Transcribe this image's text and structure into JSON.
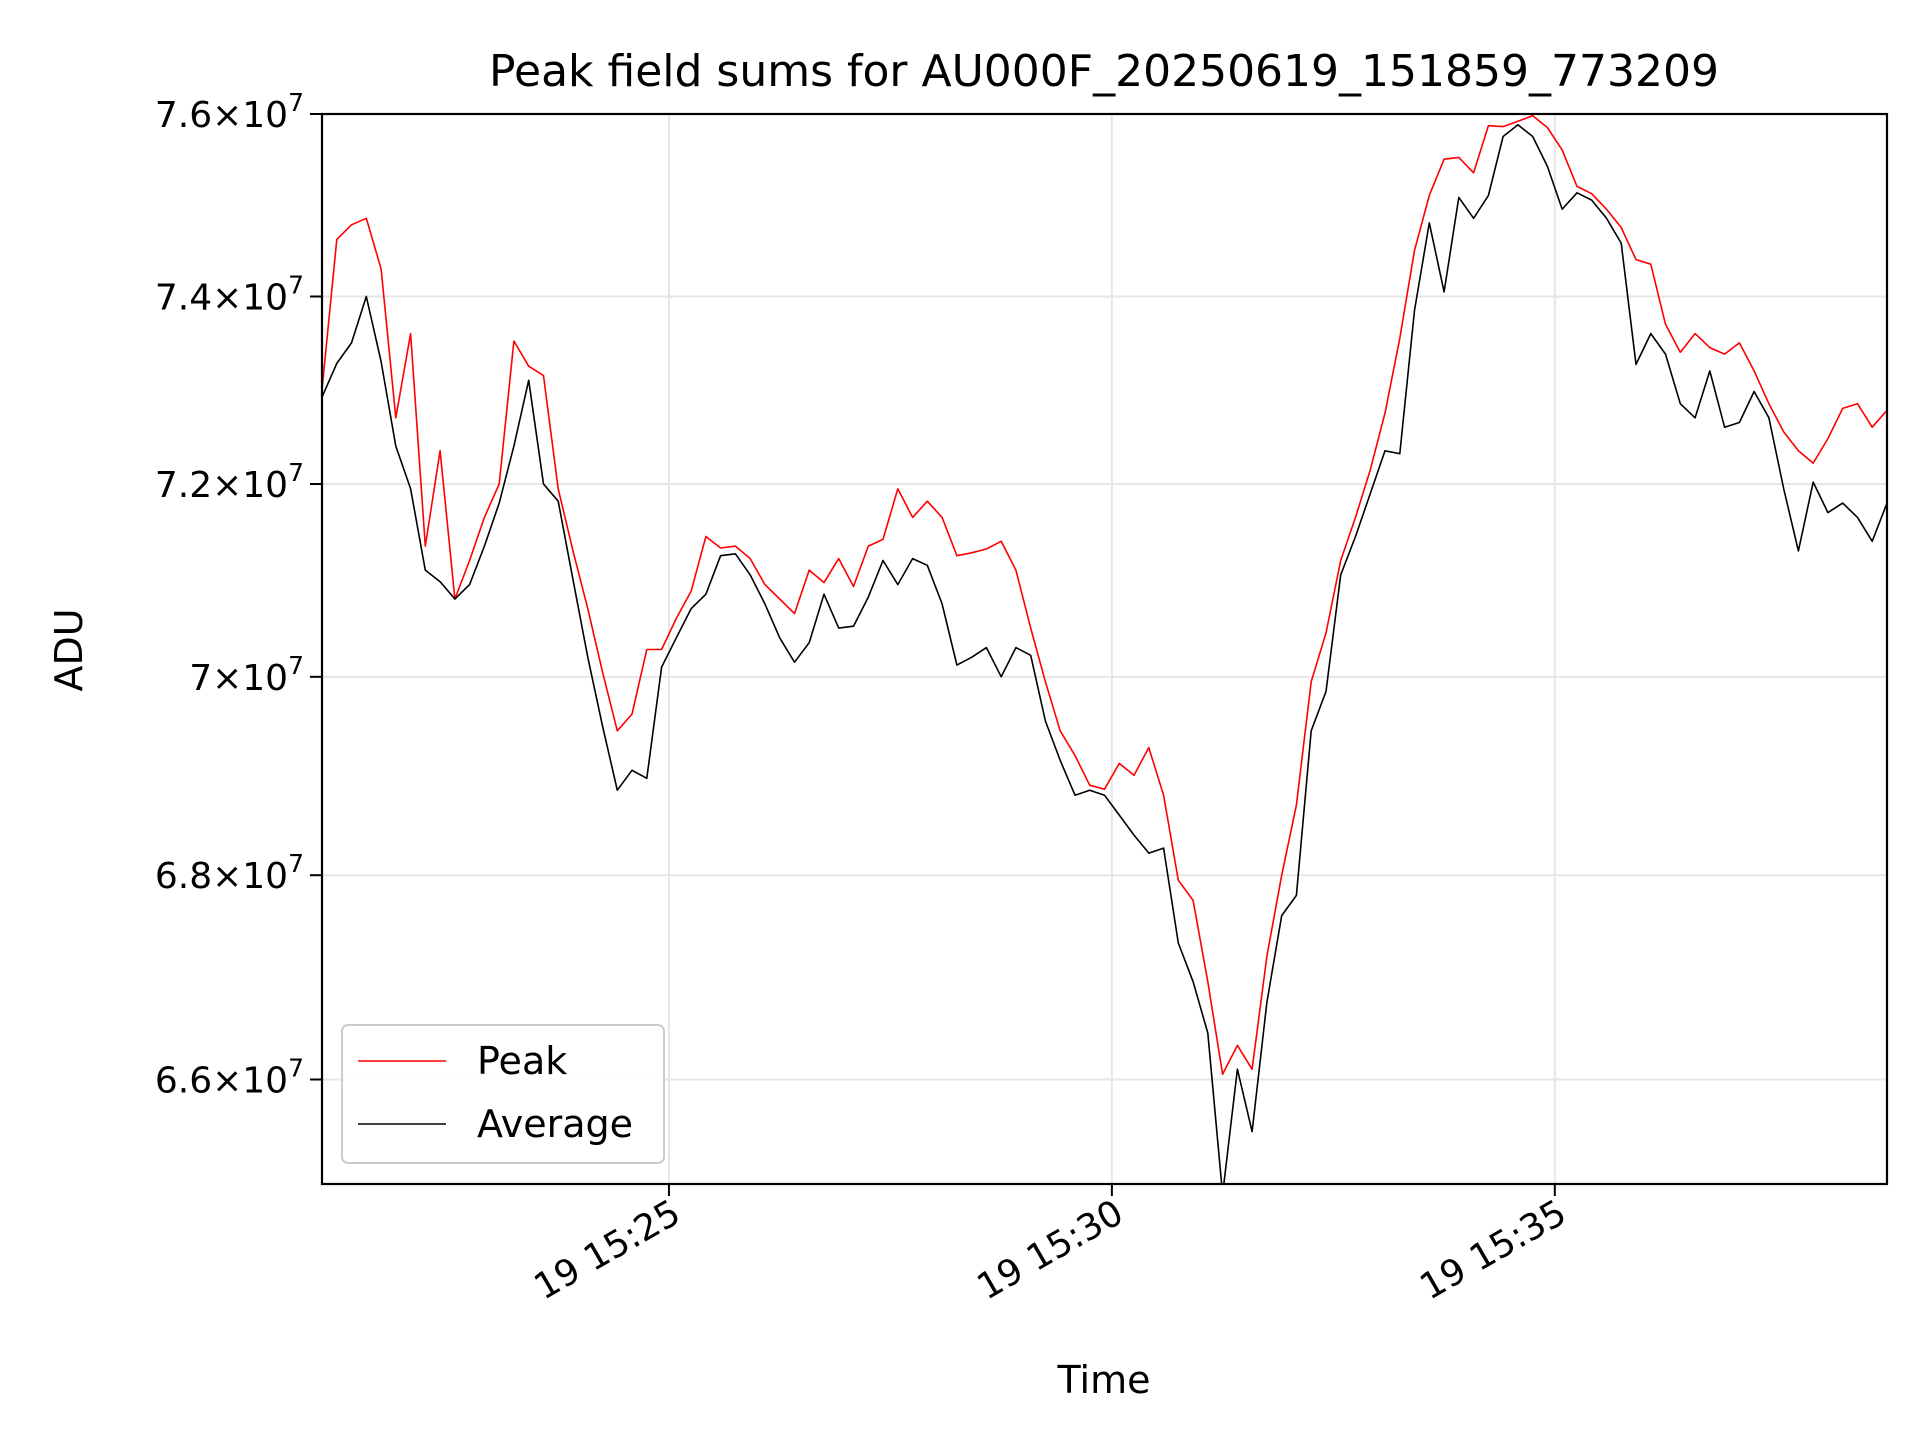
{
  "chart_data": {
    "type": "line",
    "title": "Peak field sums for AU000F_20250619_151859_773209",
    "xlabel": "Time",
    "ylabel": "ADU",
    "x_axis_type": "datetime",
    "y_scale": "log",
    "x_start": "2025-06-19 15:21:05",
    "x_end": "2025-06-19 15:38:45",
    "ylim": [
      65000000,
      76000000
    ],
    "grid": true,
    "legend_position": "lower-left",
    "x_ticks": [
      {
        "time": "2025-06-19 15:25:00",
        "label": "19 15:25"
      },
      {
        "time": "2025-06-19 15:30:00",
        "label": "19 15:30"
      },
      {
        "time": "2025-06-19 15:35:00",
        "label": "19 15:35"
      }
    ],
    "y_ticks": [
      {
        "value": 66000000,
        "mantissa": "6.6",
        "exp": "7"
      },
      {
        "value": 68000000,
        "mantissa": "6.8",
        "exp": "7"
      },
      {
        "value": 70000000,
        "mantissa": "7",
        "exp": "7"
      },
      {
        "value": 72000000,
        "mantissa": "7.2",
        "exp": "7"
      },
      {
        "value": 74000000,
        "mantissa": "7.4",
        "exp": "7"
      },
      {
        "value": 76000000,
        "mantissa": "7.6",
        "exp": "7"
      }
    ],
    "series": [
      {
        "name": "Peak",
        "color": "#ff0000",
        "points": [
          [
            "15:21:05",
            73.0
          ],
          [
            "15:21:15",
            74.62
          ],
          [
            "15:21:25",
            74.78
          ],
          [
            "15:21:35",
            74.85
          ],
          [
            "15:21:45",
            74.3
          ],
          [
            "15:21:55",
            72.7
          ],
          [
            "15:22:05",
            73.6
          ],
          [
            "15:22:15",
            71.35
          ],
          [
            "15:22:25",
            72.35
          ],
          [
            "15:22:35",
            70.8
          ],
          [
            "15:22:45",
            71.2
          ],
          [
            "15:22:55",
            71.65
          ],
          [
            "15:23:05",
            72.0
          ],
          [
            "15:23:15",
            73.52
          ],
          [
            "15:23:25",
            73.25
          ],
          [
            "15:23:35",
            73.15
          ],
          [
            "15:23:45",
            71.95
          ],
          [
            "15:23:55",
            71.3
          ],
          [
            "15:24:05",
            70.7
          ],
          [
            "15:24:15",
            70.05
          ],
          [
            "15:24:25",
            69.45
          ],
          [
            "15:24:35",
            69.62
          ],
          [
            "15:24:45",
            70.28
          ],
          [
            "15:24:55",
            70.28
          ],
          [
            "15:25:05",
            70.6
          ],
          [
            "15:25:15",
            70.88
          ],
          [
            "15:25:25",
            71.45
          ],
          [
            "15:25:35",
            71.33
          ],
          [
            "15:25:45",
            71.35
          ],
          [
            "15:25:55",
            71.22
          ],
          [
            "15:26:05",
            70.95
          ],
          [
            "15:26:15",
            70.8
          ],
          [
            "15:26:25",
            70.65
          ],
          [
            "15:26:35",
            71.1
          ],
          [
            "15:26:45",
            70.97
          ],
          [
            "15:26:55",
            71.22
          ],
          [
            "15:27:05",
            70.93
          ],
          [
            "15:27:15",
            71.35
          ],
          [
            "15:27:25",
            71.42
          ],
          [
            "15:27:35",
            71.95
          ],
          [
            "15:27:45",
            71.65
          ],
          [
            "15:27:55",
            71.82
          ],
          [
            "15:28:05",
            71.65
          ],
          [
            "15:28:15",
            71.25
          ],
          [
            "15:28:25",
            71.28
          ],
          [
            "15:28:35",
            71.32
          ],
          [
            "15:28:45",
            71.4
          ],
          [
            "15:28:55",
            71.1
          ],
          [
            "15:29:05",
            70.5
          ],
          [
            "15:29:15",
            69.95
          ],
          [
            "15:29:25",
            69.45
          ],
          [
            "15:29:35",
            69.2
          ],
          [
            "15:29:45",
            68.9
          ],
          [
            "15:29:55",
            68.86
          ],
          [
            "15:30:05",
            69.12
          ],
          [
            "15:30:15",
            69.0
          ],
          [
            "15:30:25",
            69.28
          ],
          [
            "15:30:35",
            68.8
          ],
          [
            "15:30:45",
            67.95
          ],
          [
            "15:30:55",
            67.75
          ],
          [
            "15:31:05",
            66.95
          ],
          [
            "15:31:15",
            66.05
          ],
          [
            "15:31:25",
            66.33
          ],
          [
            "15:31:35",
            66.1
          ],
          [
            "15:31:45",
            67.2
          ],
          [
            "15:31:55",
            68.0
          ],
          [
            "15:32:05",
            68.7
          ],
          [
            "15:32:15",
            69.95
          ],
          [
            "15:32:25",
            70.45
          ],
          [
            "15:32:35",
            71.2
          ],
          [
            "15:32:45",
            71.65
          ],
          [
            "15:32:55",
            72.15
          ],
          [
            "15:33:05",
            72.75
          ],
          [
            "15:33:15",
            73.55
          ],
          [
            "15:33:25",
            74.5
          ],
          [
            "15:33:35",
            75.1
          ],
          [
            "15:33:45",
            75.5
          ],
          [
            "15:33:55",
            75.52
          ],
          [
            "15:34:05",
            75.35
          ],
          [
            "15:34:15",
            75.87
          ],
          [
            "15:34:25",
            75.86
          ],
          [
            "15:34:35",
            75.92
          ],
          [
            "15:34:45",
            75.98
          ],
          [
            "15:34:55",
            75.85
          ],
          [
            "15:35:05",
            75.6
          ],
          [
            "15:35:15",
            75.2
          ],
          [
            "15:35:25",
            75.12
          ],
          [
            "15:35:35",
            74.95
          ],
          [
            "15:35:45",
            74.75
          ],
          [
            "15:35:55",
            74.4
          ],
          [
            "15:36:05",
            74.35
          ],
          [
            "15:36:15",
            73.7
          ],
          [
            "15:36:25",
            73.4
          ],
          [
            "15:36:35",
            73.6
          ],
          [
            "15:36:45",
            73.45
          ],
          [
            "15:36:55",
            73.38
          ],
          [
            "15:37:05",
            73.5
          ],
          [
            "15:37:15",
            73.2
          ],
          [
            "15:37:25",
            72.85
          ],
          [
            "15:37:35",
            72.55
          ],
          [
            "15:37:45",
            72.35
          ],
          [
            "15:37:55",
            72.22
          ],
          [
            "15:38:05",
            72.48
          ],
          [
            "15:38:15",
            72.8
          ],
          [
            "15:38:25",
            72.85
          ],
          [
            "15:38:35",
            72.6
          ],
          [
            "15:38:45",
            72.78
          ]
        ]
      },
      {
        "name": "Average",
        "color": "#000000",
        "points": [
          [
            "15:21:05",
            72.92
          ],
          [
            "15:21:15",
            73.28
          ],
          [
            "15:21:25",
            73.5
          ],
          [
            "15:21:35",
            74.0
          ],
          [
            "15:21:45",
            73.3
          ],
          [
            "15:21:55",
            72.4
          ],
          [
            "15:22:05",
            71.95
          ],
          [
            "15:22:15",
            71.1
          ],
          [
            "15:22:25",
            70.98
          ],
          [
            "15:22:35",
            70.8
          ],
          [
            "15:22:45",
            70.95
          ],
          [
            "15:22:55",
            71.35
          ],
          [
            "15:23:05",
            71.8
          ],
          [
            "15:23:15",
            72.4
          ],
          [
            "15:23:25",
            73.1
          ],
          [
            "15:23:35",
            72.0
          ],
          [
            "15:23:45",
            71.82
          ],
          [
            "15:23:55",
            71.0
          ],
          [
            "15:24:05",
            70.2
          ],
          [
            "15:24:15",
            69.5
          ],
          [
            "15:24:25",
            68.85
          ],
          [
            "15:24:35",
            69.05
          ],
          [
            "15:24:45",
            68.97
          ],
          [
            "15:24:55",
            70.1
          ],
          [
            "15:25:05",
            70.4
          ],
          [
            "15:25:15",
            70.7
          ],
          [
            "15:25:25",
            70.85
          ],
          [
            "15:25:35",
            71.25
          ],
          [
            "15:25:45",
            71.27
          ],
          [
            "15:25:55",
            71.05
          ],
          [
            "15:26:05",
            70.75
          ],
          [
            "15:26:15",
            70.4
          ],
          [
            "15:26:25",
            70.15
          ],
          [
            "15:26:35",
            70.35
          ],
          [
            "15:26:45",
            70.85
          ],
          [
            "15:26:55",
            70.5
          ],
          [
            "15:27:05",
            70.52
          ],
          [
            "15:27:15",
            70.82
          ],
          [
            "15:27:25",
            71.2
          ],
          [
            "15:27:35",
            70.95
          ],
          [
            "15:27:45",
            71.22
          ],
          [
            "15:27:55",
            71.15
          ],
          [
            "15:28:05",
            70.75
          ],
          [
            "15:28:15",
            70.12
          ],
          [
            "15:28:25",
            70.2
          ],
          [
            "15:28:35",
            70.3
          ],
          [
            "15:28:45",
            70.0
          ],
          [
            "15:28:55",
            70.3
          ],
          [
            "15:29:05",
            70.22
          ],
          [
            "15:29:15",
            69.55
          ],
          [
            "15:29:25",
            69.15
          ],
          [
            "15:29:35",
            68.8
          ],
          [
            "15:29:45",
            68.85
          ],
          [
            "15:29:55",
            68.8
          ],
          [
            "15:30:05",
            68.6
          ],
          [
            "15:30:15",
            68.4
          ],
          [
            "15:30:25",
            68.22
          ],
          [
            "15:30:35",
            68.27
          ],
          [
            "15:30:45",
            67.33
          ],
          [
            "15:30:55",
            66.95
          ],
          [
            "15:31:05",
            66.45
          ],
          [
            "15:31:15",
            64.9
          ],
          [
            "15:31:25",
            66.1
          ],
          [
            "15:31:35",
            65.5
          ],
          [
            "15:31:45",
            66.75
          ],
          [
            "15:31:55",
            67.6
          ],
          [
            "15:32:05",
            67.8
          ],
          [
            "15:32:15",
            69.45
          ],
          [
            "15:32:25",
            69.85
          ],
          [
            "15:32:35",
            71.05
          ],
          [
            "15:32:45",
            71.45
          ],
          [
            "15:32:55",
            71.9
          ],
          [
            "15:33:05",
            72.35
          ],
          [
            "15:33:15",
            72.32
          ],
          [
            "15:33:25",
            73.85
          ],
          [
            "15:33:35",
            74.8
          ],
          [
            "15:33:45",
            74.05
          ],
          [
            "15:33:55",
            75.08
          ],
          [
            "15:34:05",
            74.85
          ],
          [
            "15:34:15",
            75.1
          ],
          [
            "15:34:25",
            75.75
          ],
          [
            "15:34:35",
            75.88
          ],
          [
            "15:34:45",
            75.75
          ],
          [
            "15:34:55",
            75.42
          ],
          [
            "15:35:05",
            74.95
          ],
          [
            "15:35:15",
            75.13
          ],
          [
            "15:35:25",
            75.05
          ],
          [
            "15:35:35",
            74.85
          ],
          [
            "15:35:45",
            74.58
          ],
          [
            "15:35:55",
            73.27
          ],
          [
            "15:36:05",
            73.6
          ],
          [
            "15:36:15",
            73.38
          ],
          [
            "15:36:25",
            72.85
          ],
          [
            "15:36:35",
            72.7
          ],
          [
            "15:36:45",
            73.2
          ],
          [
            "15:36:55",
            72.6
          ],
          [
            "15:37:05",
            72.65
          ],
          [
            "15:37:15",
            72.98
          ],
          [
            "15:37:25",
            72.7
          ],
          [
            "15:37:35",
            71.95
          ],
          [
            "15:37:45",
            71.3
          ],
          [
            "15:37:55",
            72.02
          ],
          [
            "15:38:05",
            71.7
          ],
          [
            "15:38:15",
            71.8
          ],
          [
            "15:38:25",
            71.65
          ],
          [
            "15:38:35",
            71.4
          ],
          [
            "15:38:45",
            71.8
          ]
        ]
      }
    ],
    "value_unit_multiplier": 1000000
  }
}
